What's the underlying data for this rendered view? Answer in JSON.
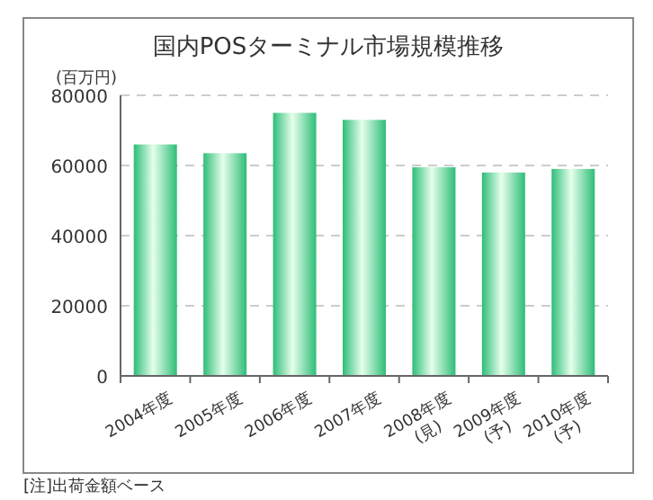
{
  "chart_data": {
    "type": "bar",
    "title": "国内POSターミナル市場規模推移",
    "ylabel": "(百万円)",
    "categories": [
      "2004年度",
      "2005年度",
      "2006年度",
      "2007年度",
      "2008年度\n(見)",
      "2009年度\n(予)",
      "2010年度\n(予)"
    ],
    "values": [
      66000,
      63500,
      75000,
      73000,
      59500,
      58000,
      59000
    ],
    "color": "#2ebd78",
    "ylim": [
      0,
      80000
    ],
    "yticks": [
      0,
      20000,
      40000,
      60000,
      80000
    ],
    "grid": "y",
    "annotations": [
      "[注]出荷金額ベース"
    ]
  }
}
